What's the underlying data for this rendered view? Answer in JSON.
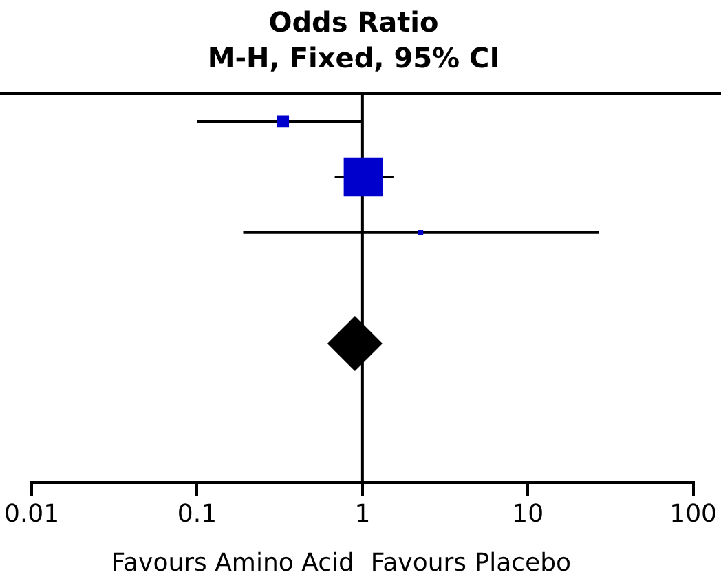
{
  "chart_data": {
    "type": "scatter",
    "orientation": "horizontal",
    "title": "Odds Ratio",
    "subtitle": "M-H, Fixed, 95% CI",
    "categories": [
      null,
      null,
      null,
      null,
      null,
      null,
      null
    ],
    "series": [
      {
        "color": "#0000cc",
        "marker": "square",
        "values": [
          0.33,
          1.01,
          2.25,
          null,
          null,
          null,
          null
        ],
        "errors": [
          [
            0.1,
            1.0
          ],
          [
            0.68,
            1.54
          ],
          [
            0.19,
            26.8
          ],
          null,
          null,
          null,
          null
        ],
        "sizes": [
          0.1,
          1,
          0.017,
          null,
          null,
          null,
          null
        ]
      },
      {
        "color": "#000000",
        "marker": "diamond",
        "values": [
          null,
          null,
          null,
          null,
          0.9,
          null,
          null
        ],
        "errors": [
          null,
          null,
          null,
          null,
          [
            0.63,
            1.29
          ],
          null,
          null
        ]
      }
    ],
    "log": "x",
    "xlim": [
      0.01,
      100
    ],
    "xticks": [
      0.01,
      0.1,
      1,
      10,
      100
    ],
    "tick_labels": "x",
    "grid": false,
    "legend": false,
    "ref_lines": [
      {
        "axis": "x",
        "value": 1
      }
    ],
    "annotations": [
      "Favours Amino Acid",
      "Favours Placebo"
    ]
  }
}
